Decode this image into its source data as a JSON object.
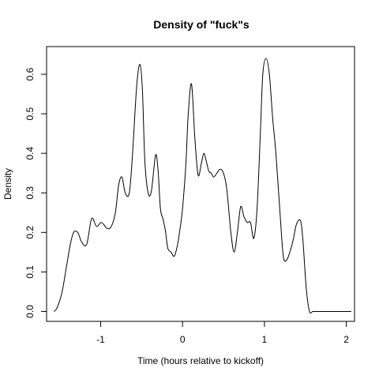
{
  "chart_data": {
    "type": "line",
    "title": "Density of \"fuck\"s",
    "xlabel": "Time (hours relative to kickoff)",
    "ylabel": "Density",
    "xlim": [
      -1.66,
      2.1
    ],
    "ylim": [
      -0.025,
      0.67
    ],
    "x_ticks": [
      -1,
      0,
      1,
      2
    ],
    "x_tick_labels": [
      "-1",
      "0",
      "1",
      "2"
    ],
    "y_ticks": [
      0.0,
      0.1,
      0.2,
      0.3,
      0.4,
      0.5,
      0.6
    ],
    "y_tick_labels": [
      "0.0",
      "0.1",
      "0.2",
      "0.3",
      "0.4",
      "0.5",
      "0.6"
    ],
    "grid": false,
    "legend": "none",
    "series": [
      {
        "color": "#000000",
        "x": [
          -1.57,
          -1.53,
          -1.47,
          -1.42,
          -1.37,
          -1.33,
          -1.28,
          -1.23,
          -1.17,
          -1.11,
          -1.05,
          -0.99,
          -0.92,
          -0.87,
          -0.82,
          -0.78,
          -0.74,
          -0.7,
          -0.65,
          -0.61,
          -0.56,
          -0.52,
          -0.49,
          -0.46,
          -0.42,
          -0.38,
          -0.33,
          -0.3,
          -0.27,
          -0.24,
          -0.21,
          -0.18,
          -0.14,
          -0.1,
          -0.06,
          -0.03,
          0.0,
          0.04,
          0.07,
          0.11,
          0.15,
          0.19,
          0.23,
          0.26,
          0.29,
          0.32,
          0.35,
          0.38,
          0.42,
          0.46,
          0.5,
          0.54,
          0.59,
          0.63,
          0.67,
          0.71,
          0.75,
          0.79,
          0.83,
          0.87,
          0.91,
          0.95,
          0.98,
          1.02,
          1.06,
          1.1,
          1.14,
          1.19,
          1.23,
          1.27,
          1.31,
          1.35,
          1.39,
          1.44,
          1.47,
          1.51,
          1.55,
          1.59,
          1.64,
          1.69,
          1.74,
          1.79,
          1.83,
          1.87,
          1.9,
          1.94,
          1.98,
          2.02,
          2.06
        ],
        "y": [
          0.0,
          0.01,
          0.05,
          0.11,
          0.17,
          0.2,
          0.2,
          0.175,
          0.17,
          0.235,
          0.215,
          0.225,
          0.21,
          0.215,
          0.25,
          0.32,
          0.34,
          0.3,
          0.3,
          0.4,
          0.57,
          0.625,
          0.56,
          0.38,
          0.3,
          0.305,
          0.395,
          0.36,
          0.26,
          0.235,
          0.205,
          0.16,
          0.15,
          0.14,
          0.17,
          0.21,
          0.26,
          0.37,
          0.5,
          0.575,
          0.44,
          0.345,
          0.375,
          0.4,
          0.38,
          0.355,
          0.35,
          0.34,
          0.35,
          0.36,
          0.35,
          0.31,
          0.2,
          0.15,
          0.2,
          0.265,
          0.24,
          0.225,
          0.225,
          0.185,
          0.26,
          0.45,
          0.6,
          0.64,
          0.6,
          0.49,
          0.4,
          0.25,
          0.14,
          0.13,
          0.15,
          0.18,
          0.22,
          0.23,
          0.18,
          0.06,
          0.0,
          0.0,
          0.0,
          0.0,
          0.0,
          0.0,
          0.0,
          0.0,
          0.0,
          0.0,
          0.0,
          0.0,
          0.0
        ]
      }
    ]
  }
}
